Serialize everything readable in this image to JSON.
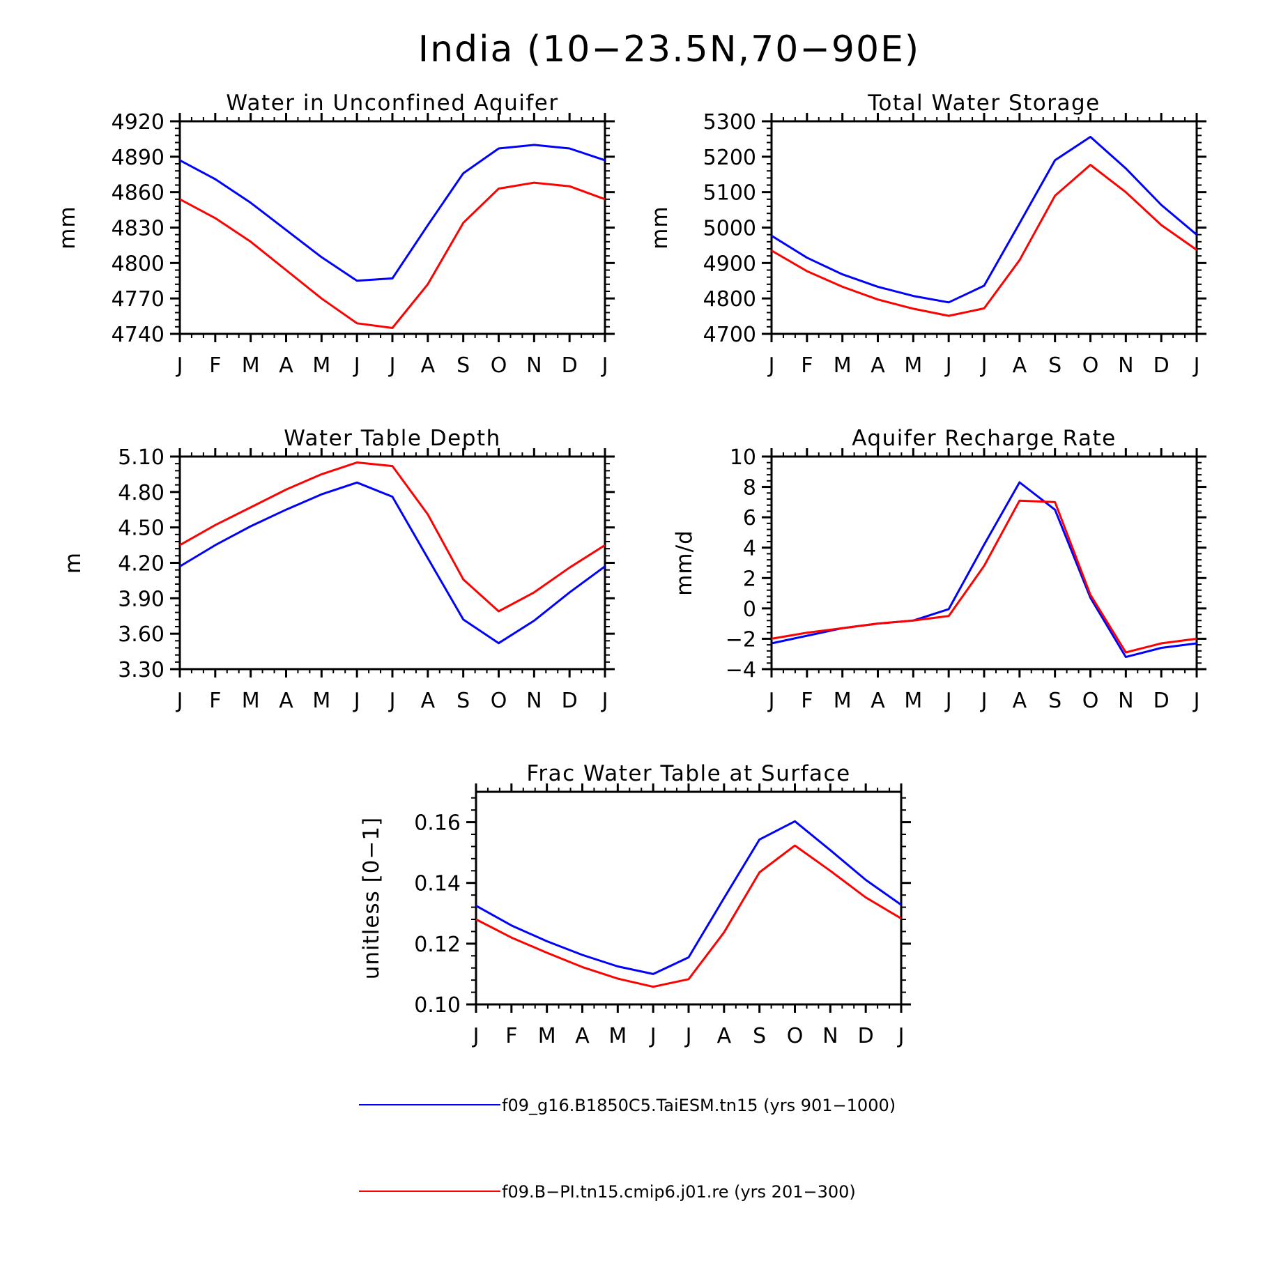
{
  "figure": {
    "title": "India (10-23.5N,70-90E)"
  },
  "legend": [
    {
      "label": "f09_g16.B1850C5.TaiESM.tn15 (yrs 901-1000)",
      "color": "#0000ff"
    },
    {
      "label": "f09.B-PI.tn15.cmip6.j01.re (yrs 201-300)",
      "color": "#ff0000"
    }
  ],
  "chart_data": [
    {
      "type": "line",
      "title": "Water in Unconfined Aquifer",
      "ylabel": "mm",
      "xlabel": "",
      "categories": [
        "J",
        "F",
        "M",
        "A",
        "M",
        "J",
        "J",
        "A",
        "S",
        "O",
        "N",
        "D",
        "J"
      ],
      "ylim": [
        4740,
        4920
      ],
      "yticks": [
        "4740",
        "4770",
        "4800",
        "4830",
        "4860",
        "4890",
        "4920"
      ],
      "series": [
        {
          "name": "f09_g16.B1850C5.TaiESM.tn15 (yrs 901-1000)",
          "color": "#0000ff",
          "values": [
            4887,
            4871,
            4851,
            4828,
            4805,
            4785,
            4787,
            4832,
            4876,
            4897,
            4900,
            4897,
            4887
          ]
        },
        {
          "name": "f09.B-PI.tn15.cmip6.j01.re (yrs 201-300)",
          "color": "#ff0000",
          "values": [
            4854,
            4838,
            4818,
            4794,
            4770,
            4749,
            4745,
            4782,
            4834,
            4863,
            4868,
            4865,
            4854
          ]
        }
      ]
    },
    {
      "type": "line",
      "title": "Total Water Storage",
      "ylabel": "mm",
      "xlabel": "",
      "categories": [
        "J",
        "F",
        "M",
        "A",
        "M",
        "J",
        "J",
        "A",
        "S",
        "O",
        "N",
        "D",
        "J"
      ],
      "ylim": [
        4700,
        5300
      ],
      "yticks": [
        "4700",
        "4800",
        "4900",
        "5000",
        "5100",
        "5200",
        "5300"
      ],
      "series": [
        {
          "name": "f09_g16.B1850C5.TaiESM.tn15 (yrs 901-1000)",
          "color": "#0000ff",
          "values": [
            4977,
            4915,
            4868,
            4833,
            4807,
            4789,
            4836,
            5012,
            5190,
            5256,
            5167,
            5064,
            4980
          ]
        },
        {
          "name": "f09.B-PI.tn15.cmip6.j01.re (yrs 201-300)",
          "color": "#ff0000",
          "values": [
            4935,
            4877,
            4833,
            4797,
            4771,
            4751,
            4772,
            4908,
            5090,
            5177,
            5100,
            5007,
            4937
          ]
        }
      ]
    },
    {
      "type": "line",
      "title": "Water Table Depth",
      "ylabel": "m",
      "xlabel": "",
      "categories": [
        "J",
        "F",
        "M",
        "A",
        "M",
        "J",
        "J",
        "A",
        "S",
        "O",
        "N",
        "D",
        "J"
      ],
      "ylim": [
        3.3,
        5.1
      ],
      "yticks": [
        "3.30",
        "3.60",
        "3.90",
        "4.20",
        "4.50",
        "4.80",
        "5.10"
      ],
      "series": [
        {
          "name": "f09_g16.B1850C5.TaiESM.tn15 (yrs 901-1000)",
          "color": "#0000ff",
          "values": [
            4.17,
            4.35,
            4.51,
            4.65,
            4.78,
            4.88,
            4.76,
            4.24,
            3.72,
            3.52,
            3.71,
            3.95,
            4.17
          ]
        },
        {
          "name": "f09.B-PI.tn15.cmip6.j01.re (yrs 201-300)",
          "color": "#ff0000",
          "values": [
            4.35,
            4.52,
            4.67,
            4.82,
            4.95,
            5.05,
            5.02,
            4.61,
            4.06,
            3.79,
            3.95,
            4.16,
            4.35
          ]
        }
      ]
    },
    {
      "type": "line",
      "title": "Aquifer Recharge Rate",
      "ylabel": "mm/d",
      "xlabel": "",
      "categories": [
        "J",
        "F",
        "M",
        "A",
        "M",
        "J",
        "J",
        "A",
        "S",
        "O",
        "N",
        "D",
        "J"
      ],
      "ylim": [
        -4,
        10
      ],
      "yticks": [
        "-4",
        "-2",
        "0",
        "2",
        "4",
        "6",
        "8",
        "10"
      ],
      "series": [
        {
          "name": "f09_g16.B1850C5.TaiESM.tn15 (yrs 901-1000)",
          "color": "#0000ff",
          "values": [
            -2.3,
            -1.8,
            -1.3,
            -1.0,
            -0.8,
            -0.05,
            4.2,
            8.3,
            6.5,
            0.7,
            -3.2,
            -2.6,
            -2.3
          ]
        },
        {
          "name": "f09.B-PI.tn15.cmip6.j01.re (yrs 201-300)",
          "color": "#ff0000",
          "values": [
            -2.0,
            -1.6,
            -1.3,
            -1.0,
            -0.8,
            -0.5,
            2.8,
            7.1,
            7.0,
            0.9,
            -2.9,
            -2.3,
            -2.0
          ]
        }
      ]
    },
    {
      "type": "line",
      "title": "Frac Water Table at Surface",
      "ylabel": "unitless [0-1]",
      "xlabel": "",
      "categories": [
        "J",
        "F",
        "M",
        "A",
        "M",
        "J",
        "J",
        "A",
        "S",
        "O",
        "N",
        "D",
        "J"
      ],
      "ylim": [
        0.1,
        0.17
      ],
      "yticks": [
        "0.10",
        "0.12",
        "0.14",
        "0.16"
      ],
      "series": [
        {
          "name": "f09_g16.B1850C5.TaiESM.tn15 (yrs 901-1000)",
          "color": "#0000ff",
          "values": [
            0.1325,
            0.126,
            0.1208,
            0.1163,
            0.1125,
            0.11,
            0.1155,
            0.135,
            0.1543,
            0.1603,
            0.1508,
            0.141,
            0.1328
          ]
        },
        {
          "name": "f09.B-PI.tn15.cmip6.j01.re (yrs 201-300)",
          "color": "#ff0000",
          "values": [
            0.128,
            0.122,
            0.117,
            0.1123,
            0.1085,
            0.1058,
            0.1083,
            0.1237,
            0.1435,
            0.1523,
            0.144,
            0.1352,
            0.1283
          ]
        }
      ]
    }
  ]
}
